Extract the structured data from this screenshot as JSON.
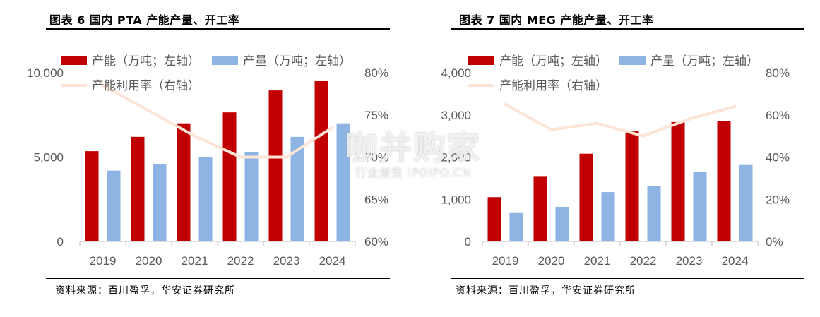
{
  "charts": [
    {
      "title": "图表 6  国内 PTA 产能产量、开工率",
      "source": "资料来源：百川盈孚，华安证券研究所",
      "left_ticks": [
        "0",
        "5,000",
        "10,000"
      ],
      "right_ticks": [
        "60%",
        "65%",
        "70%",
        "75%",
        "80%"
      ],
      "legend": {
        "capacity": "产能（万吨；左轴）",
        "output": "产量（万吨；左轴）",
        "utilization": "产能利用率（右轴）"
      }
    },
    {
      "title": "图表 7  国内 MEG 产能产量、开工率",
      "source": "资料来源：百川盈孚，华安证券研究所",
      "left_ticks": [
        "0",
        "1,000",
        "2,000",
        "3,000",
        "4,000"
      ],
      "right_ticks": [
        "0%",
        "20%",
        "40%",
        "60%",
        "80%"
      ],
      "legend": {
        "capacity": "产能（万吨；左轴）",
        "output": "产量（万吨；左轴）",
        "utilization": "产能利用率（右轴）"
      }
    }
  ],
  "colors": {
    "capacity": "#C00000",
    "output": "#8EB4E3",
    "utilization": "#FCE4D6",
    "axis_text": "#595959",
    "axis_line": "#BFBFBF"
  },
  "watermark": {
    "main": "咖并购家",
    "sub": "行业报告 IPOIPO.CN"
  },
  "chart_data": [
    {
      "type": "bar",
      "title": "图表 6  国内 PTA 产能产量、开工率",
      "categories": [
        "2019",
        "2020",
        "2021",
        "2022",
        "2023",
        "2024"
      ],
      "series": [
        {
          "name": "产能（万吨；左轴）",
          "axis": "left",
          "type": "bar",
          "values": [
            5350,
            6200,
            7000,
            7650,
            8950,
            9500
          ]
        },
        {
          "name": "产量（万吨；左轴）",
          "axis": "left",
          "type": "bar",
          "values": [
            4200,
            4600,
            5000,
            5300,
            6200,
            7000
          ]
        },
        {
          "name": "产能利用率（右轴）",
          "axis": "right",
          "type": "line",
          "values": [
            78.5,
            75.5,
            72.5,
            70.0,
            70.0,
            73.5
          ]
        }
      ],
      "ylim_left": [
        0,
        10000
      ],
      "ylim_right": [
        60,
        80
      ],
      "grid": false,
      "legend_position": "top"
    },
    {
      "type": "bar",
      "title": "图表 7  国内 MEG 产能产量、开工率",
      "categories": [
        "2019",
        "2020",
        "2021",
        "2022",
        "2023",
        "2024"
      ],
      "series": [
        {
          "name": "产能（万吨；左轴）",
          "axis": "left",
          "type": "bar",
          "values": [
            1050,
            1550,
            2080,
            2620,
            2830,
            2850
          ]
        },
        {
          "name": "产量（万吨；左轴）",
          "axis": "left",
          "type": "bar",
          "values": [
            690,
            820,
            1170,
            1310,
            1640,
            1830
          ]
        },
        {
          "name": "产能利用率（右轴）",
          "axis": "right",
          "type": "line",
          "values": [
            65,
            53,
            56,
            50,
            58,
            64
          ]
        }
      ],
      "ylim_left": [
        0,
        4000
      ],
      "ylim_right": [
        0,
        80
      ],
      "grid": false,
      "legend_position": "top"
    }
  ]
}
